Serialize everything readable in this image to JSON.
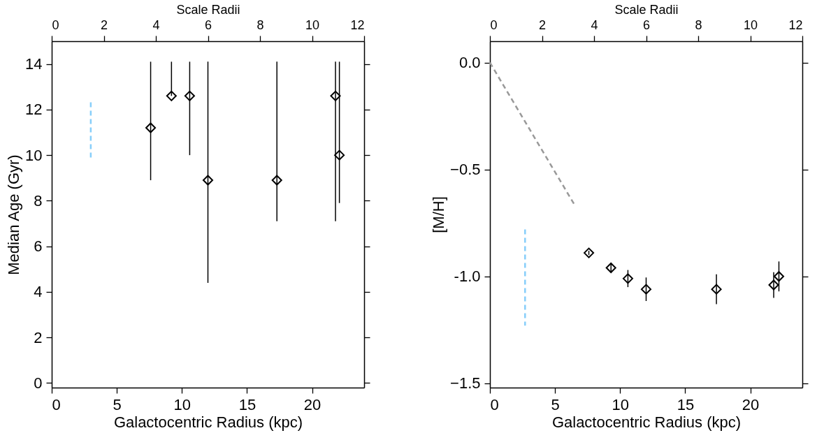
{
  "chart_data": [
    {
      "type": "scatter",
      "xlabel": "Galactocentric Radius (kpc)",
      "ylabel": "Median Age (Gyr)",
      "x2label": "Scale Radii",
      "xlim": [
        0,
        24
      ],
      "xticks": [
        0,
        5,
        10,
        15,
        20
      ],
      "x2lim": [
        0,
        12
      ],
      "x2ticks": [
        0,
        2,
        4,
        6,
        8,
        10,
        12
      ],
      "ylim": [
        -0.2,
        15
      ],
      "yticks": [
        0,
        2,
        4,
        6,
        8,
        10,
        12,
        14
      ],
      "grid": false,
      "marker": "diamond",
      "series": [
        {
          "color": "#000000",
          "x": [
            7.6,
            9.2,
            10.6,
            12.0,
            17.3,
            21.8,
            22.1
          ],
          "values": [
            11.2,
            12.6,
            12.6,
            8.9,
            8.9,
            12.6,
            10.0
          ],
          "errors": [
            [
              8.9,
              14.1
            ],
            [
              12.6,
              14.1
            ],
            [
              10.0,
              14.1
            ],
            [
              4.4,
              14.1
            ],
            [
              7.1,
              14.1
            ],
            [
              7.1,
              14.1
            ],
            [
              7.9,
              14.1
            ]
          ]
        },
        {
          "type": "line",
          "color": "#87cefa",
          "line_style": "dashed",
          "marker": "none",
          "x": [
            3.0,
            3.0
          ],
          "values": [
            9.9,
            12.4
          ]
        }
      ]
    },
    {
      "type": "scatter",
      "xlabel": "Galactocentric Radius (kpc)",
      "ylabel": "[M/H]",
      "x2label": "Scale Radii",
      "xlim": [
        0,
        24
      ],
      "xticks": [
        0,
        5,
        10,
        15,
        20
      ],
      "x2lim": [
        0,
        12
      ],
      "x2ticks": [
        0,
        2,
        4,
        6,
        8,
        10,
        12
      ],
      "ylim": [
        -1.52,
        0.1
      ],
      "yticks": [
        -1.5,
        {
          "value": -1,
          "label": "-1.0"
        },
        -0.5,
        {
          "value": 0,
          "label": "0.0"
        }
      ],
      "grid": false,
      "marker": "diamond",
      "series": [
        {
          "color": "#000000",
          "x": [
            7.6,
            9.3,
            10.6,
            12.0,
            17.4,
            21.8,
            22.2
          ],
          "values": [
            -0.89,
            -0.96,
            -1.01,
            -1.06,
            -1.06,
            -1.04,
            -1.0
          ],
          "errors": [
            0.01,
            0.02,
            0.04,
            0.055,
            0.07,
            0.06,
            0.07
          ]
        },
        {
          "type": "line",
          "color": "#999999",
          "line_style": "dashed",
          "marker": "none",
          "x": [
            0,
            6.45
          ],
          "values": [
            0,
            -0.66
          ]
        },
        {
          "type": "line",
          "color": "#87cefa",
          "line_style": "dashed",
          "marker": "none",
          "x": [
            2.7,
            2.7
          ],
          "values": [
            -0.78,
            -1.23
          ]
        }
      ]
    }
  ]
}
